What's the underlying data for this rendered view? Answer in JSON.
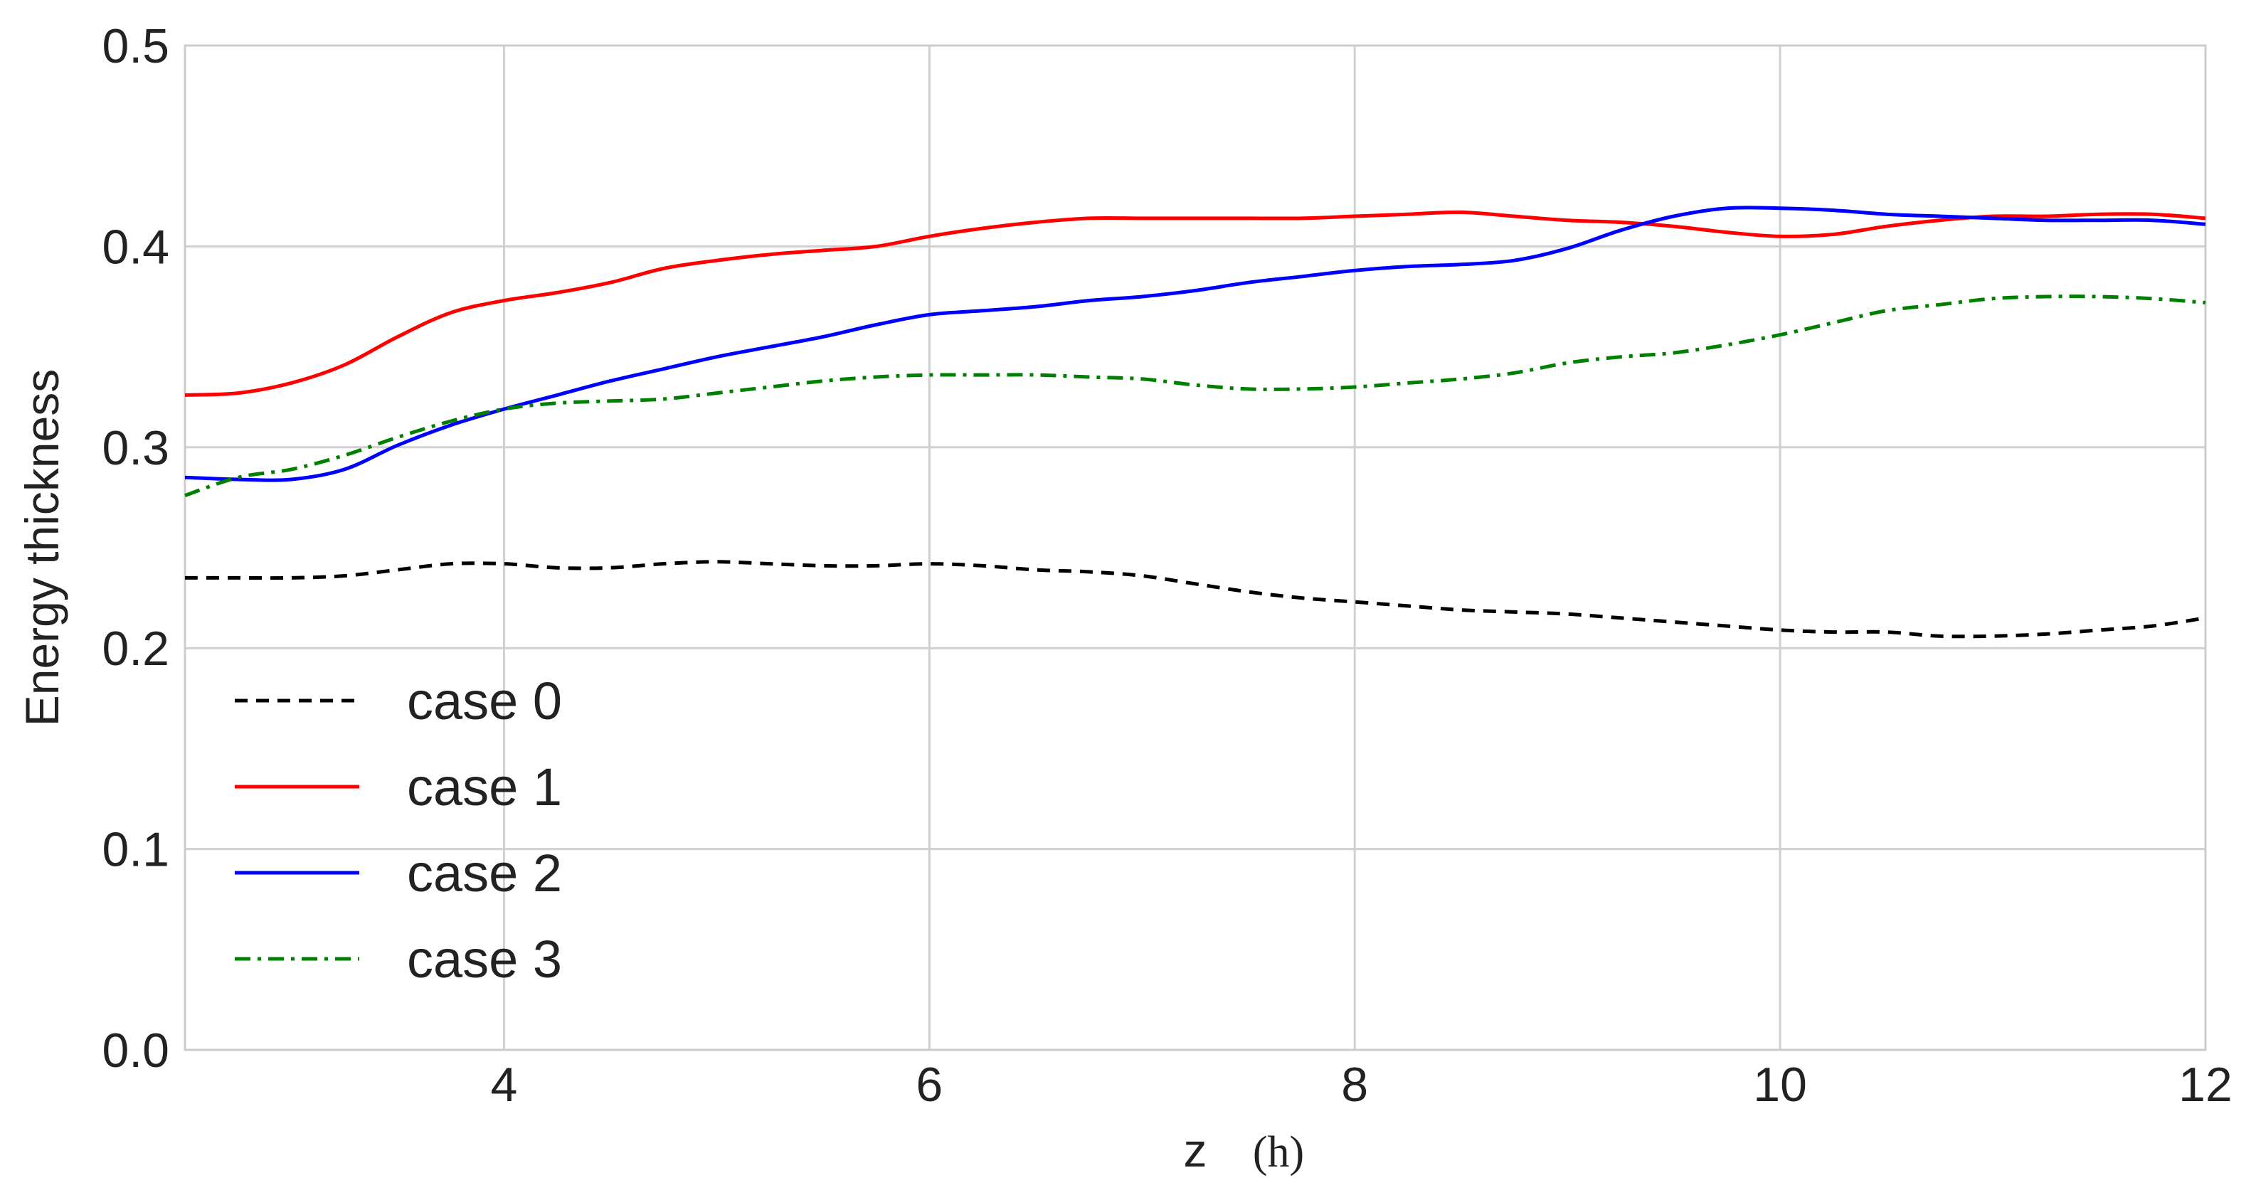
{
  "chart_data": {
    "type": "line",
    "xlabel": "z",
    "xlabel_unit": "(h)",
    "ylabel": "Energy thickness",
    "xlim": [
      2.5,
      12
    ],
    "ylim": [
      0.0,
      0.5
    ],
    "xticks": [
      4,
      6,
      8,
      10,
      12
    ],
    "xtick_labels": [
      "4",
      "6",
      "8",
      "10",
      "12"
    ],
    "yticks": [
      0.0,
      0.1,
      0.2,
      0.3,
      0.4,
      0.5
    ],
    "ytick_labels": [
      "0.0",
      "0.1",
      "0.2",
      "0.3",
      "0.4",
      "0.5"
    ],
    "grid": true,
    "legend_position": "lower-left",
    "x": [
      2.5,
      2.75,
      3.0,
      3.25,
      3.5,
      3.75,
      4.0,
      4.25,
      4.5,
      4.75,
      5.0,
      5.25,
      5.5,
      5.75,
      6.0,
      6.25,
      6.5,
      6.75,
      7.0,
      7.25,
      7.5,
      7.75,
      8.0,
      8.25,
      8.5,
      8.75,
      9.0,
      9.25,
      9.5,
      9.75,
      10.0,
      10.25,
      10.5,
      10.75,
      11.0,
      11.25,
      11.5,
      11.75,
      12.0
    ],
    "series": [
      {
        "name": "case 0",
        "color": "#000000",
        "dash": "dashed",
        "values": [
          0.235,
          0.235,
          0.235,
          0.236,
          0.239,
          0.242,
          0.242,
          0.24,
          0.24,
          0.242,
          0.243,
          0.242,
          0.241,
          0.241,
          0.242,
          0.241,
          0.239,
          0.238,
          0.236,
          0.232,
          0.228,
          0.225,
          0.223,
          0.221,
          0.219,
          0.218,
          0.217,
          0.215,
          0.213,
          0.211,
          0.209,
          0.208,
          0.208,
          0.206,
          0.206,
          0.207,
          0.209,
          0.211,
          0.215
        ]
      },
      {
        "name": "case 1",
        "color": "#ff0000",
        "dash": "solid",
        "values": [
          0.326,
          0.327,
          0.332,
          0.341,
          0.355,
          0.367,
          0.373,
          0.377,
          0.382,
          0.389,
          0.393,
          0.396,
          0.398,
          0.4,
          0.405,
          0.409,
          0.412,
          0.414,
          0.414,
          0.414,
          0.414,
          0.414,
          0.415,
          0.416,
          0.417,
          0.415,
          0.413,
          0.412,
          0.41,
          0.407,
          0.405,
          0.406,
          0.41,
          0.413,
          0.415,
          0.415,
          0.416,
          0.416,
          0.414
        ]
      },
      {
        "name": "case 2",
        "color": "#0000ff",
        "dash": "solid",
        "values": [
          0.285,
          0.284,
          0.284,
          0.289,
          0.301,
          0.311,
          0.319,
          0.326,
          0.333,
          0.339,
          0.345,
          0.35,
          0.355,
          0.361,
          0.366,
          0.368,
          0.37,
          0.373,
          0.375,
          0.378,
          0.382,
          0.385,
          0.388,
          0.39,
          0.391,
          0.393,
          0.399,
          0.408,
          0.415,
          0.419,
          0.419,
          0.418,
          0.416,
          0.415,
          0.414,
          0.413,
          0.413,
          0.413,
          0.411
        ]
      },
      {
        "name": "case 3",
        "color": "#008000",
        "dash": "dashdot",
        "values": [
          0.276,
          0.285,
          0.289,
          0.296,
          0.305,
          0.313,
          0.319,
          0.322,
          0.323,
          0.324,
          0.327,
          0.33,
          0.333,
          0.335,
          0.336,
          0.336,
          0.336,
          0.335,
          0.334,
          0.331,
          0.329,
          0.329,
          0.33,
          0.332,
          0.334,
          0.337,
          0.342,
          0.345,
          0.347,
          0.351,
          0.356,
          0.362,
          0.368,
          0.371,
          0.374,
          0.375,
          0.375,
          0.374,
          0.372
        ]
      }
    ]
  }
}
